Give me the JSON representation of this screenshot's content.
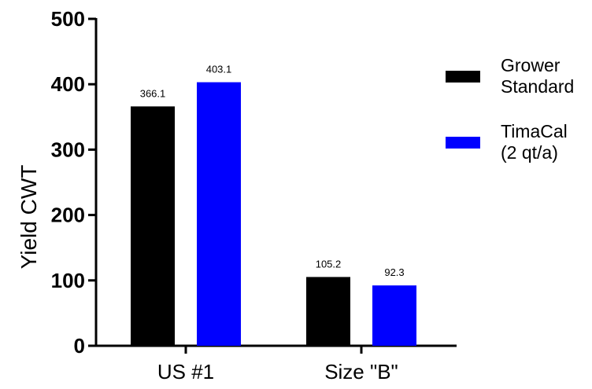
{
  "chart_data": {
    "type": "bar",
    "title": "",
    "xlabel": "",
    "ylabel": "Yield CWT",
    "ylim": [
      0,
      500
    ],
    "yticks": [
      "0",
      "100",
      "200",
      "300",
      "400",
      "500"
    ],
    "categories": [
      "US #1",
      "Size \"B\""
    ],
    "grid": false,
    "legend_position": "right",
    "series": [
      {
        "name": "Grower Standard",
        "name_lines": [
          "Grower",
          "Standard"
        ],
        "color": "#000000",
        "values": [
          366.1,
          105.2
        ],
        "labels": [
          "366.1",
          "105.2"
        ]
      },
      {
        "name": "TimaCal (2 qt/a)",
        "name_lines": [
          "TimaCal",
          "(2 qt/a)"
        ],
        "color": "#0000FF",
        "values": [
          403.1,
          92.3
        ],
        "labels": [
          "403.1",
          "92.3"
        ]
      }
    ]
  }
}
